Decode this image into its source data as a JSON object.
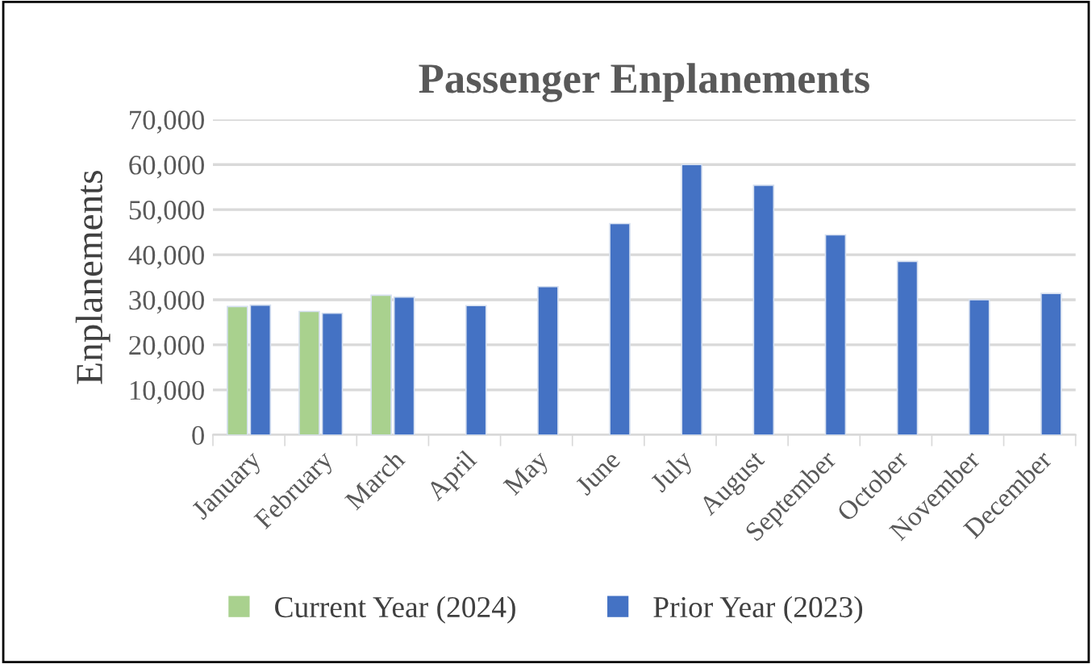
{
  "chart_data": {
    "type": "bar",
    "title": "Passenger Enplanements",
    "ylabel": "Enplanements",
    "categories": [
      "January",
      "February",
      "March",
      "April",
      "May",
      "June",
      "July",
      "August",
      "September",
      "October",
      "November",
      "December"
    ],
    "series": [
      {
        "name": "Current Year (2024)",
        "color": "#a9d18e",
        "values": [
          28500,
          27400,
          31000,
          null,
          null,
          null,
          null,
          null,
          null,
          null,
          null,
          null
        ]
      },
      {
        "name": "Prior Year (2023)",
        "color": "#4472c4",
        "values": [
          28800,
          27000,
          30600,
          28700,
          32900,
          46900,
          60000,
          55400,
          44400,
          38500,
          30000,
          31400
        ]
      }
    ],
    "ylim": [
      0,
      70000
    ],
    "yticks": [
      {
        "value": 0,
        "label": "0"
      },
      {
        "value": 10000,
        "label": "10,000"
      },
      {
        "value": 20000,
        "label": "20,000"
      },
      {
        "value": 30000,
        "label": "30,000"
      },
      {
        "value": 40000,
        "label": "40,000"
      },
      {
        "value": 50000,
        "label": "50,000"
      },
      {
        "value": 60000,
        "label": "60,000"
      },
      {
        "value": 70000,
        "label": "70,000"
      }
    ],
    "grid": "y",
    "legend": "bottom"
  }
}
